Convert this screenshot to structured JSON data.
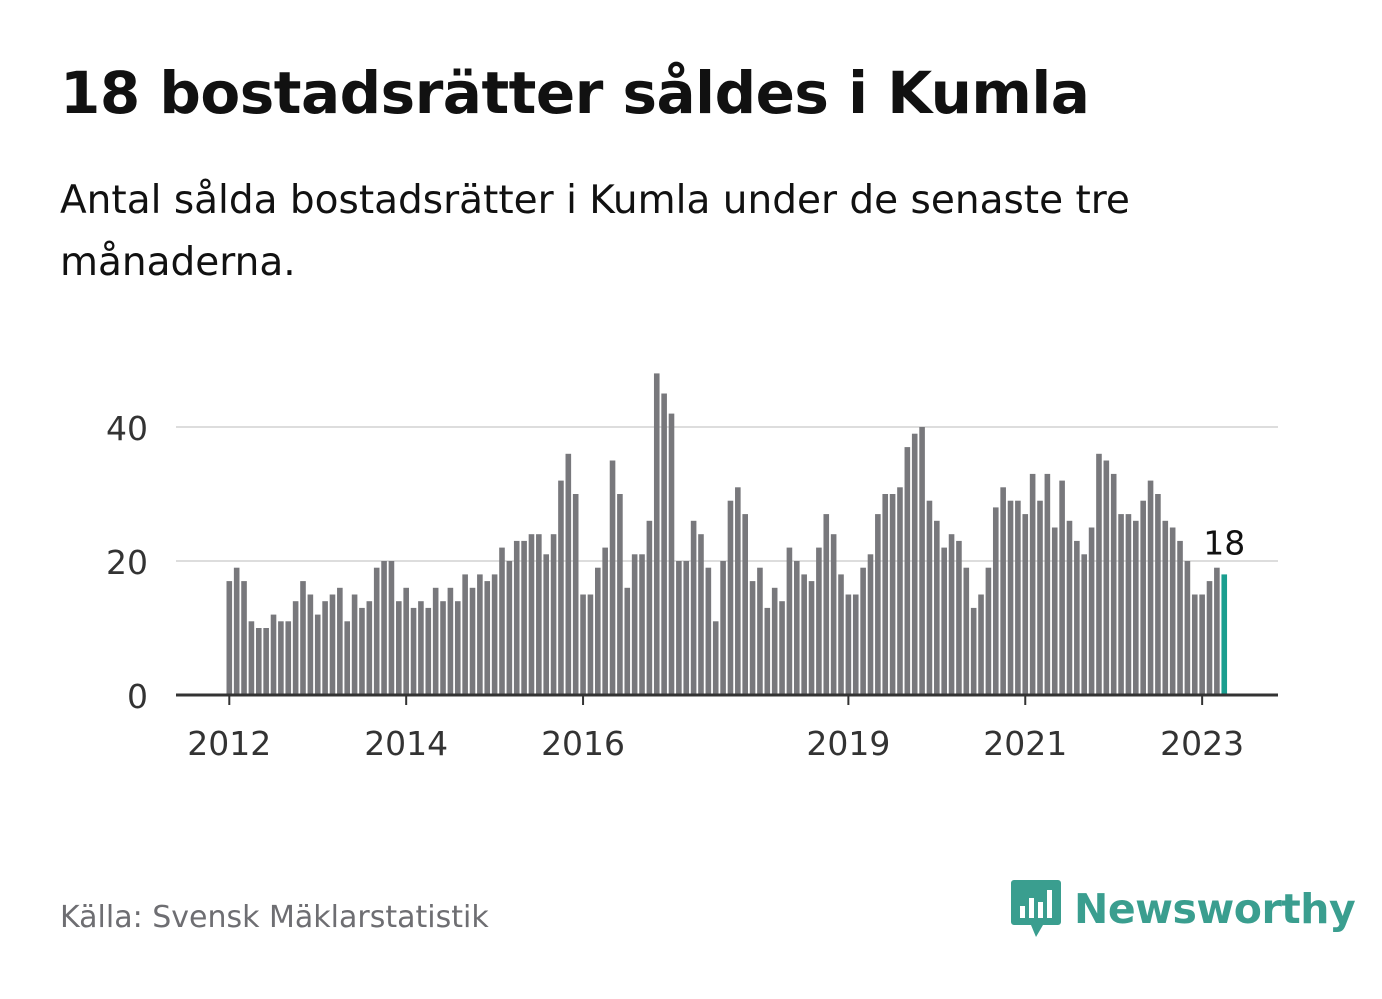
{
  "title": "18 bostadsrätter såldes i Kumla",
  "subtitle": "Antal sålda bostadsrätter i Kumla under de senaste tre månaderna.",
  "source": "Källa: Svensk Mäklarstatistik",
  "brand": {
    "name": "Newsworthy",
    "color": "#3a9e8f",
    "icon": "newsworthy-logo-icon"
  },
  "colors": {
    "bar": "#78787c",
    "highlight": "#1a9e8f",
    "grid": "#dddddd",
    "axis": "#333333"
  },
  "chart_data": {
    "type": "bar",
    "x_start": "2012-01",
    "x_interval": "month",
    "values": [
      17,
      19,
      17,
      11,
      10,
      10,
      12,
      11,
      11,
      14,
      17,
      15,
      12,
      14,
      15,
      16,
      11,
      15,
      13,
      14,
      19,
      20,
      20,
      14,
      16,
      13,
      14,
      13,
      16,
      14,
      16,
      14,
      18,
      16,
      18,
      17,
      18,
      22,
      20,
      23,
      23,
      24,
      24,
      21,
      24,
      32,
      36,
      30,
      15,
      15,
      19,
      22,
      35,
      30,
      16,
      21,
      21,
      26,
      48,
      45,
      42,
      20,
      20,
      26,
      24,
      19,
      11,
      20,
      29,
      31,
      27,
      17,
      19,
      13,
      16,
      14,
      22,
      20,
      18,
      17,
      22,
      27,
      24,
      18,
      15,
      15,
      19,
      21,
      27,
      30,
      30,
      31,
      37,
      39,
      40,
      29,
      26,
      22,
      24,
      23,
      19,
      13,
      15,
      19,
      28,
      31,
      29,
      29,
      27,
      33,
      29,
      33,
      25,
      32,
      26,
      23,
      21,
      25,
      36,
      35,
      33,
      27,
      27,
      26,
      29,
      32,
      30,
      26,
      25,
      23,
      20,
      15,
      15,
      17,
      19,
      18
    ],
    "highlight_last": true,
    "last_label": "18",
    "ylim": [
      0,
      50
    ],
    "yticks": [
      0,
      20,
      40
    ],
    "ytick_labels": [
      "0",
      "20",
      "40"
    ],
    "xticks": [
      {
        "label": "2012",
        "index": 0
      },
      {
        "label": "2014",
        "index": 24
      },
      {
        "label": "2016",
        "index": 48
      },
      {
        "label": "2019",
        "index": 84
      },
      {
        "label": "2021",
        "index": 108
      },
      {
        "label": "2023",
        "index": 132
      }
    ],
    "grid": true,
    "xlabel": "",
    "ylabel": ""
  }
}
